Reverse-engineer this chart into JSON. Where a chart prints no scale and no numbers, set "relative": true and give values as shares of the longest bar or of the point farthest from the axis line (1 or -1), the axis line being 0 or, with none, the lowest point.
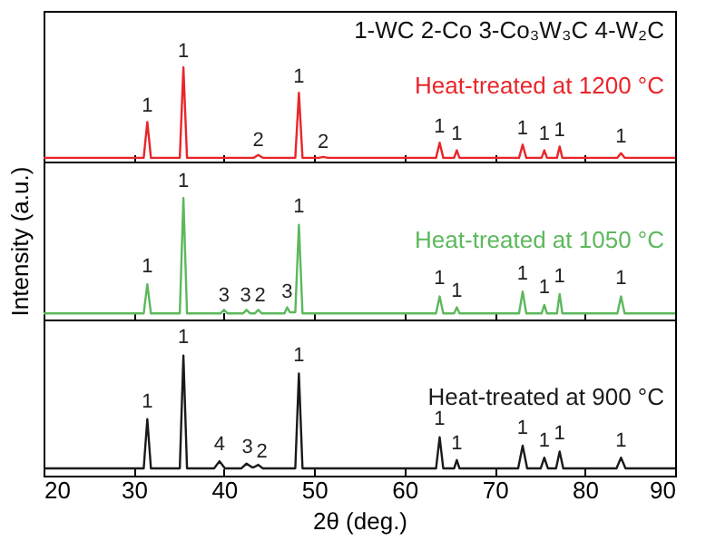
{
  "chart_data": [
    {
      "type": "line",
      "relative": true,
      "xlim": [
        20,
        90
      ],
      "xticks": [
        20,
        30,
        40,
        50,
        60,
        70,
        80,
        90
      ],
      "tick_labels": false,
      "x": [
        20,
        31.1,
        31.5,
        31.9,
        35.1,
        35.5,
        35.9,
        43.3,
        43.8,
        44.3,
        47.9,
        48.3,
        48.7,
        50.5,
        51,
        51.5,
        63.5,
        63.9,
        64.3,
        65.5,
        65.8,
        66.1,
        72.7,
        73.1,
        73.5,
        75.2,
        75.5,
        75.8,
        76.9,
        77.2,
        77.5,
        83.6,
        84,
        84.4,
        90
      ],
      "series": [
        {
          "name": "Heat-treated at 1200 °C",
          "color": "#e8262a",
          "values": [
            0.04,
            0.04,
            0.42,
            0.04,
            0.04,
            1,
            0.04,
            0.04,
            0.07,
            0.04,
            0.04,
            0.73,
            0.04,
            0.04,
            0.05,
            0.04,
            0.04,
            0.2,
            0.04,
            0.04,
            0.12,
            0.04,
            0.04,
            0.18,
            0.04,
            0.04,
            0.12,
            0.04,
            0.04,
            0.16,
            0.04,
            0.04,
            0.09,
            0.04,
            0.04
          ]
        }
      ],
      "annotations": [
        "1-WC  2-Co  3-Co₃W₃C  4-W₂C",
        {
          "text": "1",
          "x": 31.5,
          "y": 0.49
        },
        {
          "text": "1",
          "x": 35.5,
          "y": 1.07
        },
        {
          "text": "2",
          "x": 43.8,
          "y": 0.13
        },
        {
          "text": "1",
          "x": 48.3,
          "y": 0.8
        },
        {
          "text": "2",
          "x": 51,
          "y": 0.11
        },
        {
          "text": "1",
          "x": 63.9,
          "y": 0.27
        },
        {
          "text": "1",
          "x": 65.8,
          "y": 0.19
        },
        {
          "text": "1",
          "x": 73.1,
          "y": 0.25
        },
        {
          "text": "1",
          "x": 75.5,
          "y": 0.19
        },
        {
          "text": "1",
          "x": 77.2,
          "y": 0.23
        },
        {
          "text": "1",
          "x": 84,
          "y": 0.16
        }
      ]
    },
    {
      "type": "line",
      "relative": true,
      "xlim": [
        20,
        90
      ],
      "xticks": [
        20,
        30,
        40,
        50,
        60,
        70,
        80,
        90
      ],
      "tick_labels": false,
      "ylabel": "Intensity (a.u.)",
      "x": [
        20,
        31.1,
        31.5,
        31.9,
        35.1,
        35.5,
        35.9,
        39.6,
        40,
        40.4,
        42.1,
        42.5,
        42.9,
        43.4,
        43.8,
        44.2,
        46.7,
        47,
        47.3,
        47.9,
        48.3,
        48.7,
        63.5,
        63.9,
        64.3,
        65.5,
        65.8,
        66.1,
        72.7,
        73.1,
        73.5,
        75.2,
        75.5,
        75.8,
        76.9,
        77.2,
        77.5,
        83.6,
        84,
        84.4,
        90
      ],
      "series": [
        {
          "name": "Heat-treated at 1050 °C",
          "color": "#5cb85c",
          "values": [
            0.05,
            0.05,
            0.29,
            0.05,
            0.05,
            1,
            0.05,
            0.05,
            0.08,
            0.05,
            0.05,
            0.08,
            0.05,
            0.05,
            0.08,
            0.05,
            0.05,
            0.1,
            0.06,
            0.06,
            0.78,
            0.05,
            0.05,
            0.19,
            0.05,
            0.05,
            0.1,
            0.05,
            0.05,
            0.23,
            0.05,
            0.05,
            0.12,
            0.05,
            0.05,
            0.21,
            0.05,
            0.05,
            0.19,
            0.05,
            0.05
          ]
        }
      ],
      "annotations": [
        {
          "text": "1",
          "x": 31.5,
          "y": 0.36
        },
        {
          "text": "1",
          "x": 35.5,
          "y": 1.06
        },
        {
          "text": "3",
          "x": 40,
          "y": 0.12
        },
        {
          "text": "3",
          "x": 42.4,
          "y": 0.12
        },
        {
          "text": "2",
          "x": 44,
          "y": 0.12
        },
        {
          "text": "3",
          "x": 47,
          "y": 0.15
        },
        {
          "text": "1",
          "x": 48.3,
          "y": 0.85
        },
        {
          "text": "1",
          "x": 63.9,
          "y": 0.26
        },
        {
          "text": "1",
          "x": 65.8,
          "y": 0.16
        },
        {
          "text": "1",
          "x": 73.1,
          "y": 0.3
        },
        {
          "text": "1",
          "x": 75.5,
          "y": 0.19
        },
        {
          "text": "1",
          "x": 77.2,
          "y": 0.28
        },
        {
          "text": "1",
          "x": 84,
          "y": 0.26
        }
      ]
    },
    {
      "type": "line",
      "relative": true,
      "xlim": [
        20,
        90
      ],
      "xticks": [
        20,
        30,
        40,
        50,
        60,
        70,
        80,
        90
      ],
      "tick_labels": "x",
      "xlabel": "2θ (deg.)",
      "x": [
        20,
        31.1,
        31.5,
        31.9,
        35.1,
        35.5,
        35.9,
        38.9,
        39.5,
        40.1,
        41.9,
        42.5,
        43.1,
        43.3,
        43.8,
        44.3,
        47.9,
        48.3,
        48.7,
        63.5,
        63.9,
        64.3,
        65.5,
        65.8,
        66.1,
        72.6,
        73.1,
        73.6,
        75.1,
        75.5,
        75.9,
        76.8,
        77.2,
        77.6,
        83.5,
        84,
        84.5,
        90
      ],
      "series": [
        {
          "name": "Heat-treated at 900 °C",
          "color": "#1a1a1a",
          "values": [
            0.06,
            0.06,
            0.47,
            0.06,
            0.06,
            1,
            0.06,
            0.06,
            0.12,
            0.06,
            0.06,
            0.1,
            0.07,
            0.07,
            0.09,
            0.06,
            0.06,
            0.85,
            0.06,
            0.06,
            0.32,
            0.06,
            0.06,
            0.13,
            0.06,
            0.06,
            0.25,
            0.06,
            0.06,
            0.15,
            0.06,
            0.06,
            0.2,
            0.06,
            0.06,
            0.15,
            0.06,
            0.06
          ]
        }
      ],
      "annotations": [
        {
          "text": "1",
          "x": 31.5,
          "y": 0.54
        },
        {
          "text": "1",
          "x": 35.5,
          "y": 1.07
        },
        {
          "text": "4",
          "x": 39.5,
          "y": 0.18
        },
        {
          "text": "3",
          "x": 42.6,
          "y": 0.16
        },
        {
          "text": "2",
          "x": 44.2,
          "y": 0.12
        },
        {
          "text": "1",
          "x": 48.3,
          "y": 0.92
        },
        {
          "text": "1",
          "x": 63.9,
          "y": 0.39
        },
        {
          "text": "1",
          "x": 65.8,
          "y": 0.19
        },
        {
          "text": "1",
          "x": 73.1,
          "y": 0.32
        },
        {
          "text": "1",
          "x": 75.5,
          "y": 0.21
        },
        {
          "text": "1",
          "x": 77.2,
          "y": 0.27
        },
        {
          "text": "1",
          "x": 84,
          "y": 0.21
        }
      ]
    }
  ]
}
